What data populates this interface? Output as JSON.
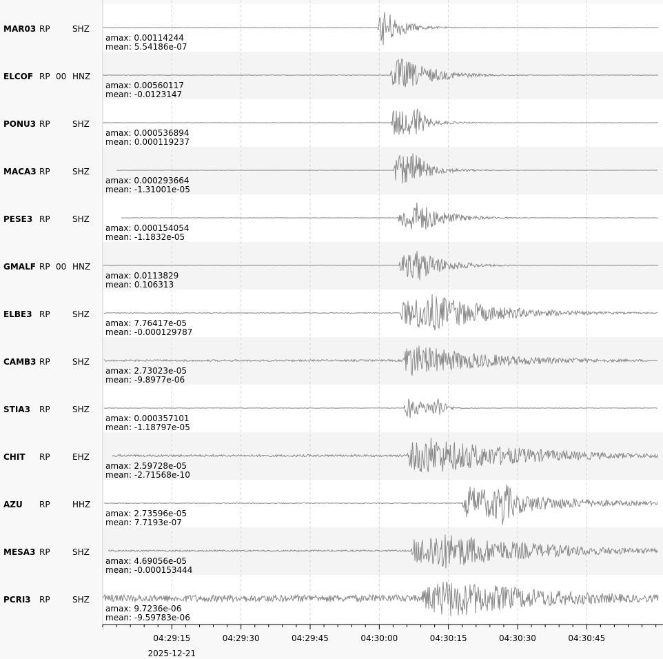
{
  "traces": [
    {
      "station": "MAR03",
      "network": "RP",
      "location": "",
      "channel": "SHZ",
      "amax": "amax: 0.00114244",
      "mean": "mean: 5.54186e-07",
      "onset_s": 59.6,
      "start_s": 0.0,
      "noise": 0.006,
      "amp": 0.55,
      "peak_s": 61.0,
      "decay": 4,
      "second_s": null
    },
    {
      "station": "ELCOF",
      "network": "RP",
      "location": "00",
      "channel": "HNZ",
      "amax": "amax: 0.00560117",
      "mean": "mean: -0.0123147",
      "onset_s": 62.3,
      "start_s": 0.0,
      "noise": 0.006,
      "amp": 0.5,
      "peak_s": 64.5,
      "decay": 7,
      "second_s": null
    },
    {
      "station": "PONU3",
      "network": "RP",
      "location": "",
      "channel": "SHZ",
      "amax": "amax: 0.000536894",
      "mean": "mean: 0.000119237",
      "onset_s": 62.5,
      "start_s": 0.0,
      "noise": 0.004,
      "amp": 0.45,
      "peak_s": 63.0,
      "decay": 5,
      "second_s": 68.0
    },
    {
      "station": "MACA3",
      "network": "RP",
      "location": "",
      "channel": "SHZ",
      "amax": "amax: 0.000293664",
      "mean": "mean: -1.31001e-05",
      "onset_s": 63.1,
      "start_s": 3.0,
      "noise": 0.004,
      "amp": 0.45,
      "peak_s": 63.8,
      "decay": 6,
      "second_s": 68.0
    },
    {
      "station": "PESE3",
      "network": "RP",
      "location": "",
      "channel": "SHZ",
      "amax": "amax: 0.000154054",
      "mean": "mean: -1.1832e-05",
      "onset_s": 64.0,
      "start_s": 4.0,
      "noise": 0.004,
      "amp": 0.45,
      "peak_s": 68.3,
      "decay": 6,
      "second_s": null
    },
    {
      "station": "GMALF",
      "network": "RP",
      "location": "00",
      "channel": "HNZ",
      "amax": "amax: 0.0113829",
      "mean": "mean: 0.106313",
      "onset_s": 64.2,
      "start_s": 0.0,
      "noise": 0.004,
      "amp": 0.45,
      "peak_s": 68.5,
      "decay": 6,
      "second_s": null
    },
    {
      "station": "ELBE3",
      "network": "RP",
      "location": "",
      "channel": "SHZ",
      "amax": "amax: 7.76417e-05",
      "mean": "mean: -0.000129787",
      "onset_s": 64.5,
      "start_s": 0.3,
      "noise": 0.01,
      "amp": 0.55,
      "peak_s": 71.0,
      "decay": 14,
      "second_s": null
    },
    {
      "station": "CAMB3",
      "network": "RP",
      "location": "",
      "channel": "SHZ",
      "amax": "amax: 2.73023e-05",
      "mean": "mean: -9.8977e-06",
      "onset_s": 65.0,
      "start_s": 0.3,
      "noise": 0.025,
      "amp": 0.5,
      "peak_s": 65.5,
      "decay": 18,
      "second_s": null
    },
    {
      "station": "STIA3",
      "network": "RP",
      "location": "",
      "channel": "SHZ",
      "amax": "amax: 0.000357101",
      "mean": "mean: -1.18797e-05",
      "onset_s": 65.3,
      "start_s": 0.3,
      "noise": 0.006,
      "amp": 0.35,
      "peak_s": 65.8,
      "decay": 4,
      "second_s": 72.7
    },
    {
      "station": "CHIT",
      "network": "RP",
      "location": "",
      "channel": "EHZ",
      "amax": "amax: 2.59728e-05",
      "mean": "mean: -2.71568e-10",
      "onset_s": 66.0,
      "start_s": 2.0,
      "noise": 0.03,
      "amp": 0.55,
      "peak_s": 70.0,
      "decay": 22,
      "second_s": null
    },
    {
      "station": "AZU",
      "network": "RP",
      "location": "",
      "channel": "HHZ",
      "amax": "amax: 2.73596e-05",
      "mean": "mean: 7.7193e-07",
      "onset_s": 78.0,
      "start_s": 0.3,
      "noise": 0.01,
      "amp": 0.5,
      "peak_s": 78.5,
      "decay": 18,
      "second_s": 87.0
    },
    {
      "station": "MESA3",
      "network": "RP",
      "location": "",
      "channel": "SHZ",
      "amax": "amax: 4.69056e-05",
      "mean": "mean: -0.000153444",
      "onset_s": 66.8,
      "start_s": 1.2,
      "noise": 0.02,
      "amp": 0.55,
      "peak_s": 72.5,
      "decay": 22,
      "second_s": null
    },
    {
      "station": "PCRI3",
      "network": "RP",
      "location": "",
      "channel": "SHZ",
      "amax": "amax: 9.7236e-06",
      "mean": "mean: -9.59783e-06",
      "onset_s": 69.0,
      "start_s": 0.0,
      "noise": 0.1,
      "amp": 0.55,
      "peak_s": 75.0,
      "decay": 25,
      "second_s": null
    }
  ],
  "time_axis": {
    "ticks": [
      "04:29:15",
      "04:29:30",
      "04:29:45",
      "04:30:00",
      "04:30:15",
      "04:30:30",
      "04:30:45"
    ],
    "tick_seconds": [
      15,
      30,
      45,
      60,
      75,
      90,
      105
    ],
    "date": "2025-12-21",
    "start_s": 0.0,
    "end_s": 120.5,
    "minor_step_s": 3
  },
  "colors": {
    "trace": "#888888",
    "grid": "#d8d8d8",
    "band_alt": "#f4f4f4",
    "band": "#ffffff"
  }
}
